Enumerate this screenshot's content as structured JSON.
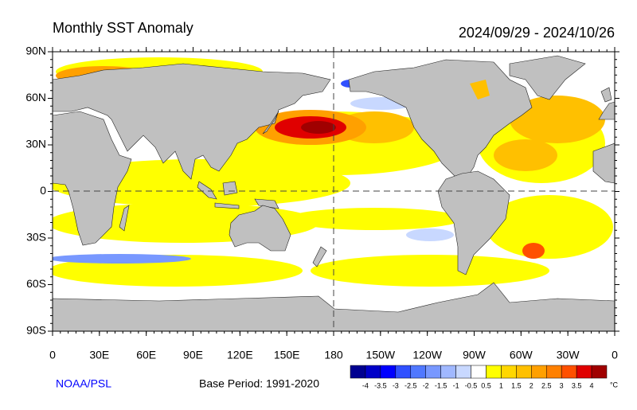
{
  "header": {
    "title": "Monthly SST Anomaly",
    "period": "2024/09/29 - 2024/10/26"
  },
  "map": {
    "lat_labels": [
      "90N",
      "60N",
      "30N",
      "0",
      "30S",
      "60S",
      "90S"
    ],
    "lon_labels": [
      "0",
      "30E",
      "60E",
      "90E",
      "120E",
      "150E",
      "180",
      "150W",
      "120W",
      "90W",
      "60W",
      "30W",
      "0"
    ]
  },
  "footer": {
    "credit": "NOAA/PSL",
    "base_period": "Base Period: 1991-2020"
  },
  "colorbar": {
    "ticks": [
      -4,
      -3.5,
      -3,
      -2.5,
      -2,
      -1.5,
      -1,
      -0.5,
      0.5,
      1,
      1.5,
      2,
      2.5,
      3,
      3.5,
      4
    ],
    "colors": [
      "#000090",
      "#0000c8",
      "#0000ff",
      "#3050ff",
      "#5078ff",
      "#7898ff",
      "#a0b8ff",
      "#c8d8ff",
      "#ffffff",
      "#ffff00",
      "#ffd700",
      "#ffc000",
      "#ffa000",
      "#ff8000",
      "#ff5000",
      "#e00000",
      "#a00000"
    ],
    "unit": "°C"
  }
}
